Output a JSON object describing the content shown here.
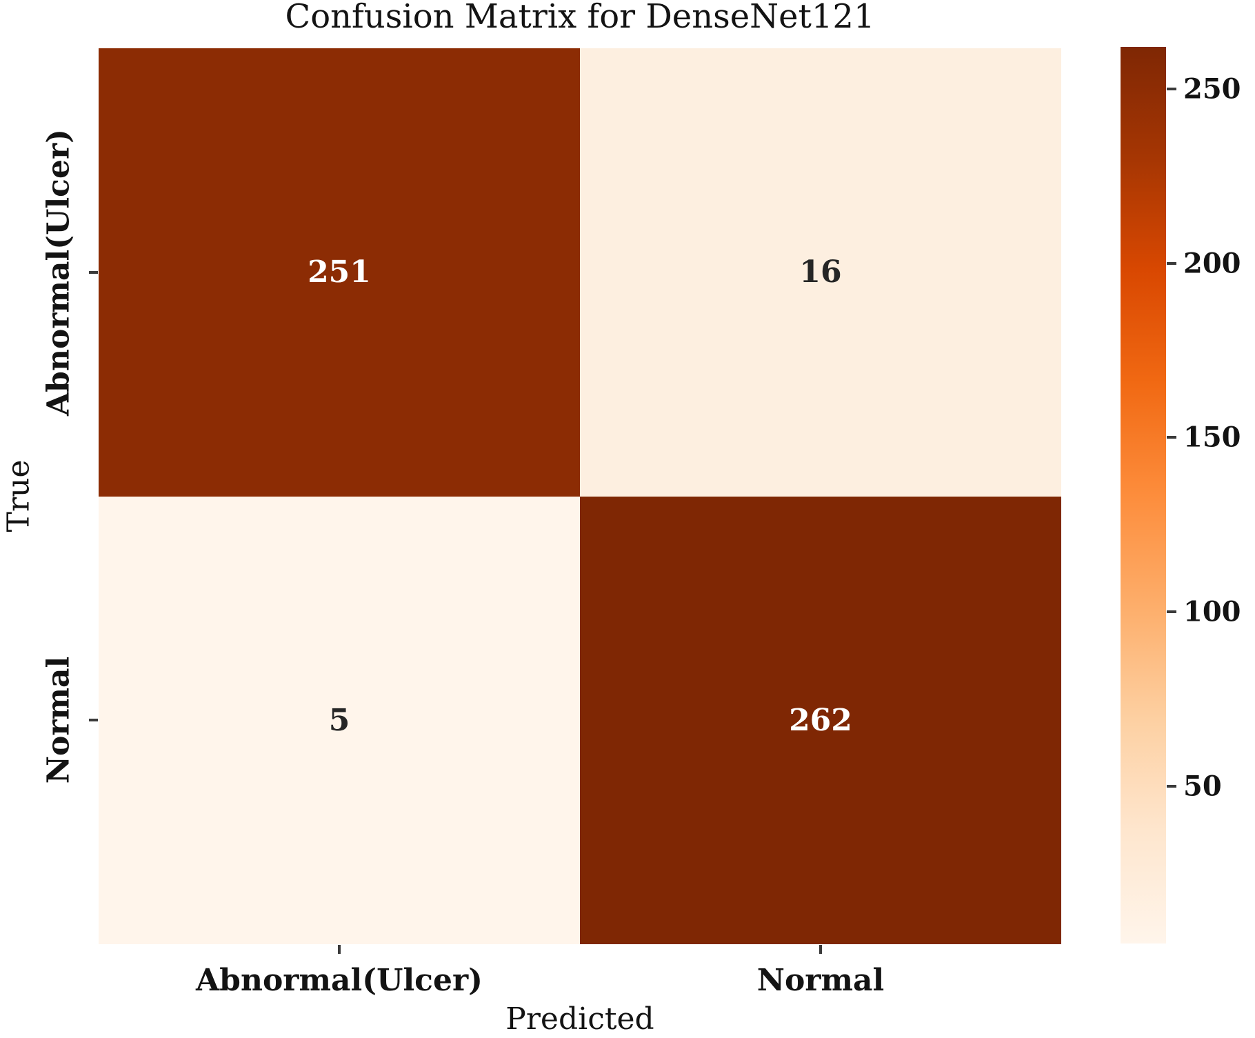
{
  "chart_data": {
    "type": "heatmap",
    "title": "Confusion Matrix for DenseNet121",
    "xlabel": "Predicted",
    "ylabel": "True",
    "x_categories": [
      "Abnormal(Ulcer)",
      "Normal"
    ],
    "y_categories": [
      "Abnormal(Ulcer)",
      "Normal"
    ],
    "matrix": [
      [
        251,
        16
      ],
      [
        5,
        262
      ]
    ],
    "colormap": "Oranges",
    "legend_position": "right-colorbar",
    "grid": false,
    "colorbar_tick_labels": [
      "250",
      "200",
      "150",
      "100",
      "50"
    ],
    "cell_colors": [
      [
        "#8c2c04",
        "#fdefe0"
      ],
      [
        "#fff5eb",
        "#7f2704"
      ]
    ],
    "cell_text_colors": [
      [
        "#ffffff",
        "#262626"
      ],
      [
        "#262626",
        "#ffffff"
      ]
    ],
    "colormap_stops": [
      {
        "color": "#7f2704",
        "pos": "0%"
      },
      {
        "color": "#a63603",
        "pos": "12.5%"
      },
      {
        "color": "#d94801",
        "pos": "25%"
      },
      {
        "color": "#f16913",
        "pos": "37.5%"
      },
      {
        "color": "#fd8d3c",
        "pos": "50%"
      },
      {
        "color": "#fdae6b",
        "pos": "62.5%"
      },
      {
        "color": "#fdd0a2",
        "pos": "75%"
      },
      {
        "color": "#fee6ce",
        "pos": "87.5%"
      },
      {
        "color": "#fff5eb",
        "pos": "100%"
      }
    ]
  }
}
